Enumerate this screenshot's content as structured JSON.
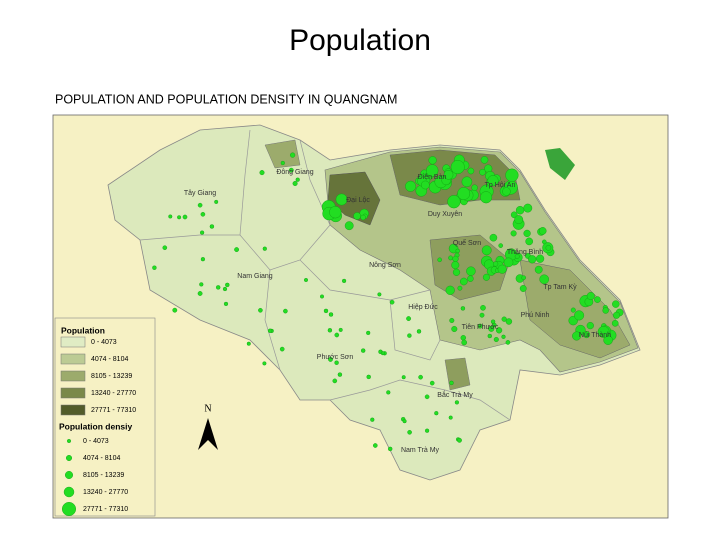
{
  "header": {
    "title": "Population",
    "subtitle": "POPULATION AND POPULATION DENSITY IN QUANGNAM"
  },
  "map": {
    "districts": [
      {
        "label": "Đông Giang"
      },
      {
        "label": "Tây Giang"
      },
      {
        "label": "Đại Lộc"
      },
      {
        "label": "Điện Bàn"
      },
      {
        "label": "Tp Hội An"
      },
      {
        "label": "Duy Xuyên"
      },
      {
        "label": "Quế Sơn"
      },
      {
        "label": "Thăng Bình"
      },
      {
        "label": "Nam Giang"
      },
      {
        "label": "Nông Sơn"
      },
      {
        "label": "Tp Tam Kỳ"
      },
      {
        "label": "Hiệp Đức"
      },
      {
        "label": "Phú Ninh"
      },
      {
        "label": "Tiên Phước"
      },
      {
        "label": "Núi Thành"
      },
      {
        "label": "Phước Sơn"
      },
      {
        "label": "Bắc Trà My"
      },
      {
        "label": "Nam Trà My"
      }
    ],
    "north": "N"
  },
  "legend": {
    "population": {
      "title": "Population",
      "classes": [
        {
          "label": "0 - 4073",
          "color": "#e0ecc4"
        },
        {
          "label": "4074 - 8104",
          "color": "#bccb94"
        },
        {
          "label": "8105 - 13239",
          "color": "#9cab6c"
        },
        {
          "label": "13240 - 27770",
          "color": "#7a894a"
        },
        {
          "label": "27771 - 77310",
          "color": "#525c2a"
        }
      ]
    },
    "density": {
      "title": "Population densiy",
      "color": "#22dd22",
      "classes": [
        {
          "label": "0 - 4073"
        },
        {
          "label": "4074 - 8104"
        },
        {
          "label": "8105 - 13239"
        },
        {
          "label": "13240 - 27770"
        },
        {
          "label": "27771 - 77310"
        }
      ]
    }
  }
}
